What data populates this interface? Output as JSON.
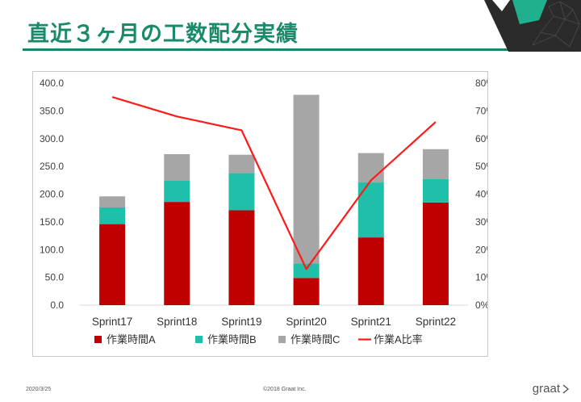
{
  "slide": {
    "title": "直近３ヶ月の工数配分実績",
    "footer_date": "2020/3/25",
    "footer_copyright": "©2018 Graat Inc.",
    "footer_logo": "graat"
  },
  "colors": {
    "title": "#1a8a6a",
    "accent_rule": "#17876a",
    "series_a": "#c00000",
    "series_b": "#1fbfaa",
    "series_c": "#a6a6a6",
    "ratio_line": "#ff1a1a"
  },
  "chart_data": {
    "type": "bar",
    "stacked": true,
    "categories": [
      "Sprint17",
      "Sprint18",
      "Sprint19",
      "Sprint20",
      "Sprint21",
      "Sprint22"
    ],
    "series": [
      {
        "name": "作業時間A",
        "values": [
          146,
          186,
          171,
          49,
          122,
          185
        ],
        "color": "#c00000"
      },
      {
        "name": "作業時間B",
        "values": [
          30,
          38,
          67,
          26,
          99,
          42
        ],
        "color": "#1fbfaa"
      },
      {
        "name": "作業時間C",
        "values": [
          20,
          48,
          33,
          304,
          53,
          54
        ],
        "color": "#a6a6a6"
      }
    ],
    "line_series": {
      "name": "作業A比率",
      "values": [
        0.75,
        0.68,
        0.63,
        0.13,
        0.45,
        0.66
      ],
      "axis": "right",
      "color": "#ff1a1a"
    },
    "ylim": [
      0,
      400
    ],
    "y_ticks": [
      "0.0",
      "50.0",
      "100.0",
      "150.0",
      "200.0",
      "250.0",
      "300.0",
      "350.0",
      "400.0"
    ],
    "y2lim": [
      0,
      0.8
    ],
    "y2_ticks": [
      "0%",
      "10%",
      "20%",
      "30%",
      "40%",
      "50%",
      "60%",
      "70%",
      "80%"
    ],
    "legend_position": "bottom",
    "grid": false
  }
}
